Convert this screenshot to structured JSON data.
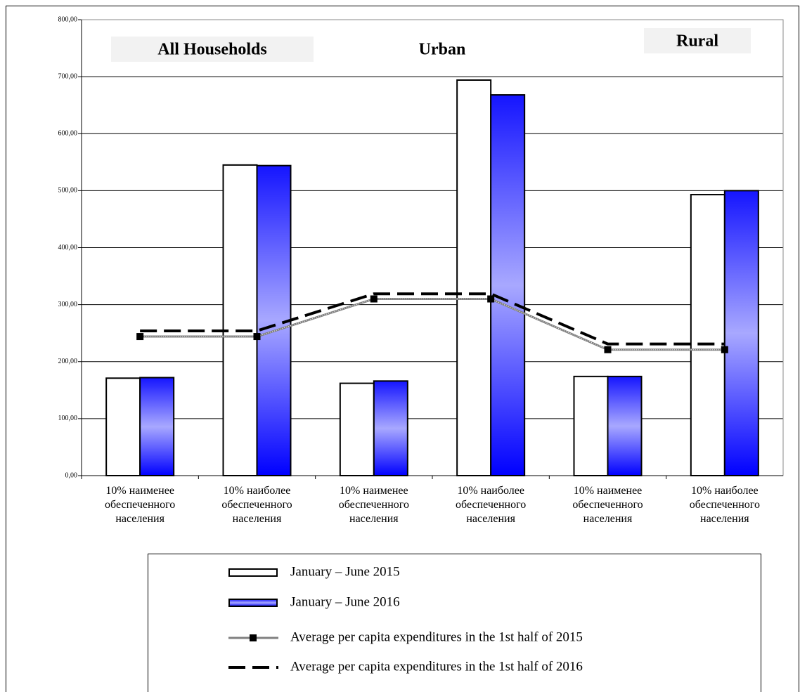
{
  "chart_data": {
    "type": "bar",
    "annotations": [
      "All Households",
      "Urban",
      "Rural"
    ],
    "categories": [
      "10% наименее\nобеспеченного\nнаселения",
      "10% наиболее\nобеспеченного\nнаселения",
      "10% наименее\nобеспеченного\nнаселения",
      "10% наиболее\nобеспеченного\nнаселения",
      "10% наименее\nобеспеченного\nнаселения",
      "10% наиболее\nобеспеченного\nнаселения"
    ],
    "series": [
      {
        "name": "January – June 2015",
        "type": "bar",
        "color": "#ffffff",
        "values": [
          171,
          545,
          162,
          694,
          174,
          493
        ]
      },
      {
        "name": "January – June 2016",
        "type": "bar",
        "color": "#0000ff",
        "values": [
          172,
          544,
          166,
          668,
          174,
          500
        ]
      },
      {
        "name": "Average per capita expenditures in the 1st half of 2015",
        "type": "line",
        "color": "#808080",
        "values": [
          244,
          244,
          310,
          310,
          221,
          221
        ]
      },
      {
        "name": "Average per capita expenditures in the 1st half of 2016",
        "type": "line",
        "color": "#000000",
        "values": [
          254,
          254,
          319,
          319,
          231,
          231
        ]
      }
    ],
    "ylim": [
      0,
      800
    ],
    "yticks": [
      {
        "value": 0,
        "label": "0,00"
      },
      {
        "value": 100,
        "label": "100,00"
      },
      {
        "value": 200,
        "label": "200,00"
      },
      {
        "value": 300,
        "label": "300,00"
      },
      {
        "value": 400,
        "label": "400,00"
      },
      {
        "value": 500,
        "label": "500,00"
      },
      {
        "value": 600,
        "label": "600,00"
      },
      {
        "value": 700,
        "label": "700,00"
      },
      {
        "value": 800,
        "label": "800,00"
      }
    ],
    "grid": true
  }
}
